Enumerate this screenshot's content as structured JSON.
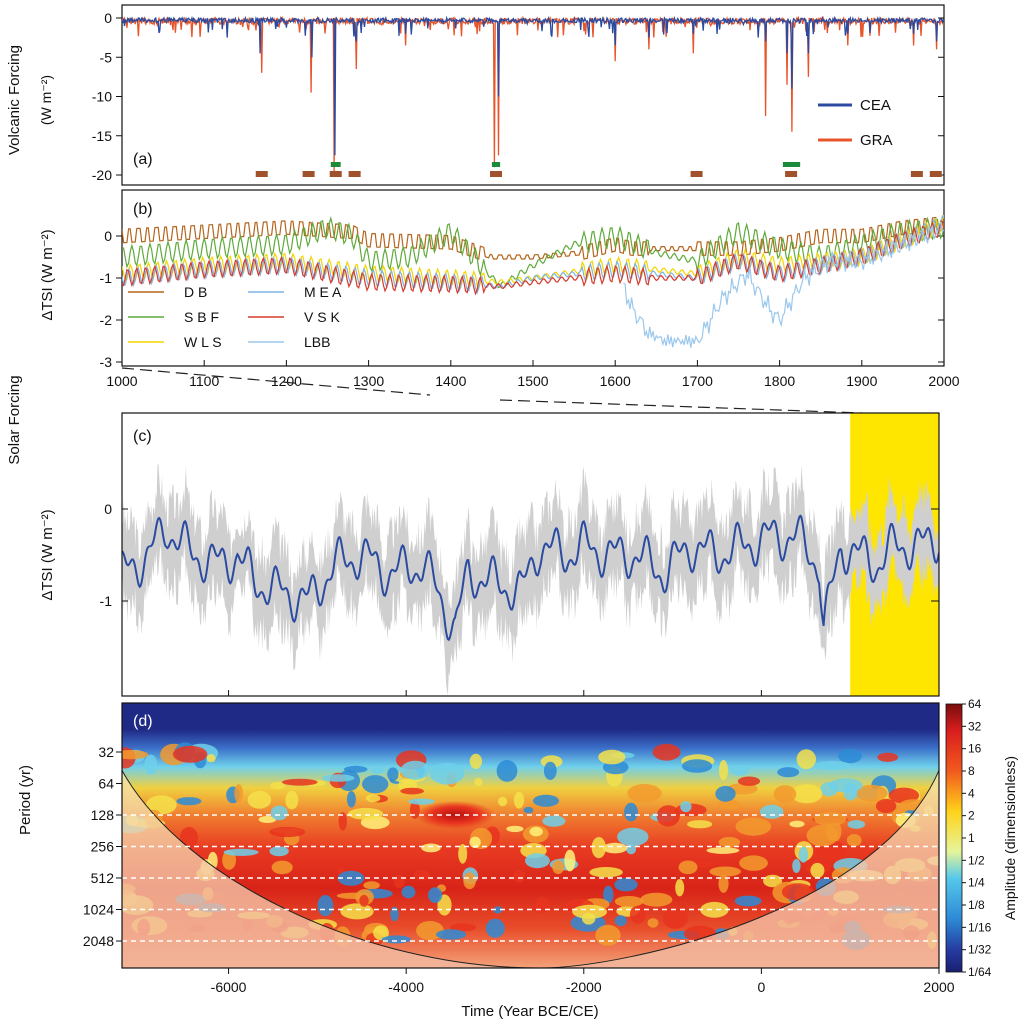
{
  "figure": {
    "group_label_volcanic_1": "Volcanic Forcing",
    "group_label_volcanic_2": "(W m⁻²)",
    "group_label_solar": "Solar Forcing",
    "x_label_bottom": "Time (Year BCE/CE)"
  },
  "colors": {
    "CEA": "#2B4BA0",
    "GRA": "#E8552A",
    "DB": "#B5651D",
    "SBF": "#5FAA3A",
    "WLS": "#F2D500",
    "MEA": "#80B3E3",
    "VSK": "#D63A2A",
    "LBB": "#9CC8EC",
    "tsi_mean": "#2B4BA0",
    "tsi_band": "#CFCFCF",
    "highlight": "#FFE600",
    "marker_brown": "#A0522D",
    "marker_green": "#1B8A3A"
  },
  "chart_data": [
    {
      "id": "a",
      "panel_label": "(a)",
      "type": "line",
      "ylabel": "Volcanic Forcing (W m⁻²)",
      "xlim": [
        1000,
        2000
      ],
      "ylim": [
        -20,
        1
      ],
      "y_ticks": [
        0,
        -5,
        -10,
        -15,
        -20
      ],
      "y_tick_labels": [
        "0",
        "-5",
        "-10",
        "-15",
        "-20"
      ],
      "legend": [
        "CEA",
        "GRA"
      ],
      "legend_position": "right",
      "series": [
        {
          "name": "CEA",
          "baseline": -0.3,
          "spikes": [
            [
              1110,
              -1.5
            ],
            [
              1168,
              -4.5
            ],
            [
              1231,
              -5.0
            ],
            [
              1259,
              -17.5
            ],
            [
              1285,
              -3.0
            ],
            [
              1345,
              -2.0
            ],
            [
              1458,
              -10.0
            ],
            [
              1600,
              -3.5
            ],
            [
              1641,
              -2.5
            ],
            [
              1695,
              -2.0
            ],
            [
              1783,
              -3.0
            ],
            [
              1809,
              -4.5
            ],
            [
              1815,
              -9.0
            ],
            [
              1835,
              -4.5
            ],
            [
              1883,
              -2.0
            ],
            [
              1963,
              -2.0
            ],
            [
              1991,
              -3.0
            ]
          ]
        },
        {
          "name": "GRA",
          "baseline": -0.4,
          "spikes": [
            [
              1170,
              -7.0
            ],
            [
              1230,
              -9.5
            ],
            [
              1258,
              -19.5
            ],
            [
              1285,
              -6.5
            ],
            [
              1345,
              -3.5
            ],
            [
              1453,
              -19.0
            ],
            [
              1458,
              -17.5
            ],
            [
              1600,
              -5.5
            ],
            [
              1641,
              -4.0
            ],
            [
              1695,
              -4.5
            ],
            [
              1783,
              -12.5
            ],
            [
              1809,
              -8.5
            ],
            [
              1815,
              -14.5
            ],
            [
              1835,
              -7.5
            ],
            [
              1883,
              -3.5
            ],
            [
              1963,
              -3.5
            ],
            [
              1991,
              -4.0
            ]
          ]
        }
      ],
      "markers_brown": [
        1170,
        1227,
        1260,
        1283,
        1455,
        1699,
        1814,
        1967,
        1990
      ],
      "markers_green": [
        [
          1254,
          1266
        ],
        [
          1450,
          1460
        ],
        [
          1804,
          1825
        ]
      ]
    },
    {
      "id": "b",
      "panel_label": "(b)",
      "type": "line",
      "ylabel": "ΔTSI (W m⁻²)",
      "xlim": [
        1000,
        2000
      ],
      "ylim": [
        -3,
        1
      ],
      "y_ticks": [
        0,
        -1,
        -2,
        -3
      ],
      "y_tick_labels": [
        "0",
        "-1",
        "-2",
        "-3"
      ],
      "x_ticks": [
        1000,
        1100,
        1200,
        1300,
        1400,
        1500,
        1600,
        1700,
        1800,
        1900,
        2000
      ],
      "x_tick_labels": [
        "1000",
        "1100",
        "1200",
        "1300",
        "1400",
        "1500",
        "1600",
        "1700",
        "1800",
        "1900",
        "2000"
      ],
      "legend_position": "lower-left",
      "series": [
        {
          "name": "D B",
          "key": "DB",
          "x": [
            1000,
            1100,
            1200,
            1280,
            1300,
            1400,
            1450,
            1500,
            1560,
            1600,
            1620,
            1700,
            1750,
            1800,
            1850,
            1900,
            1950,
            2000
          ],
          "y": [
            0,
            0.1,
            0.2,
            0.1,
            -0.1,
            -0.15,
            -0.5,
            -0.5,
            -0.4,
            -0.2,
            -0.3,
            -0.3,
            -0.3,
            -0.2,
            0,
            0,
            0.2,
            0.3
          ],
          "amp": 0.2
        },
        {
          "name": "S B F",
          "key": "SBF",
          "x": [
            1000,
            1100,
            1200,
            1250,
            1280,
            1300,
            1350,
            1400,
            1460,
            1500,
            1550,
            1600,
            1650,
            1700,
            1750,
            1800,
            1850,
            1900,
            1950,
            2000
          ],
          "y": [
            -0.5,
            -0.3,
            -0.2,
            0.2,
            0,
            -0.6,
            -0.5,
            0.1,
            -1.2,
            -0.7,
            -0.2,
            0,
            -0.4,
            -0.6,
            0.1,
            -0.3,
            -0.5,
            -0.2,
            0.1,
            0.2
          ],
          "amp": 0.25
        },
        {
          "name": "W L S",
          "key": "WLS",
          "x": [
            1000,
            1100,
            1200,
            1300,
            1400,
            1460,
            1500,
            1600,
            1650,
            1700,
            1750,
            1800,
            1850,
            1900,
            1950,
            2000
          ],
          "y": [
            -0.9,
            -0.7,
            -0.6,
            -0.9,
            -1.0,
            -1.1,
            -1.0,
            -0.7,
            -0.8,
            -0.9,
            -0.5,
            -0.7,
            -0.6,
            -0.5,
            -0.1,
            0.3
          ],
          "amp": 0.2
        },
        {
          "name": "M E A",
          "key": "MEA",
          "x": [
            1000,
            1100,
            1200,
            1300,
            1400,
            1460,
            1500,
            1600,
            1650,
            1700,
            1750,
            1800,
            1850,
            1900,
            1950,
            2000
          ],
          "y": [
            -1.0,
            -0.8,
            -0.7,
            -1.0,
            -1.1,
            -1.2,
            -1.0,
            -0.8,
            -0.9,
            -1.0,
            -0.6,
            -0.9,
            -0.7,
            -0.5,
            -0.1,
            0.3
          ],
          "amp": 0.2
        },
        {
          "name": "V S K",
          "key": "VSK",
          "x": [
            1000,
            1100,
            1200,
            1300,
            1400,
            1460,
            1500,
            1600,
            1650,
            1700,
            1750,
            1800,
            1850,
            1900,
            1950,
            2000
          ],
          "y": [
            -1.0,
            -0.8,
            -0.7,
            -1.1,
            -1.15,
            -1.2,
            -1.1,
            -0.9,
            -1.0,
            -1.0,
            -0.6,
            -0.9,
            -0.7,
            -0.5,
            -0.1,
            0.2
          ],
          "amp": 0.2
        },
        {
          "name": "LBB",
          "key": "LBB",
          "x": [
            1610,
            1620,
            1640,
            1660,
            1700,
            1710,
            1730,
            1760,
            1790,
            1800,
            1830,
            1860,
            1900,
            1950,
            2000
          ],
          "y": [
            -1.2,
            -1.7,
            -2.3,
            -2.5,
            -2.5,
            -2.2,
            -1.5,
            -0.9,
            -1.8,
            -2.0,
            -1.0,
            -0.6,
            -0.6,
            -0.2,
            0.2
          ],
          "amp": 0.15
        }
      ]
    },
    {
      "id": "c",
      "panel_label": "(c)",
      "type": "area",
      "ylabel": "ΔTSI (W m⁻²)",
      "xlim": [
        -7200,
        2000
      ],
      "ylim": [
        -2,
        1
      ],
      "y_ticks": [
        0,
        -1
      ],
      "y_tick_labels": [
        "0",
        "-1"
      ],
      "highlight_range": [
        1000,
        2000
      ],
      "series": [
        {
          "name": "mean",
          "x": [
            -7200,
            -6900,
            -6700,
            -6400,
            -6100,
            -5900,
            -5700,
            -5400,
            -5100,
            -4800,
            -4500,
            -4200,
            -3800,
            -3450,
            -3300,
            -3000,
            -2700,
            -2500,
            -2200,
            -2000,
            -1700,
            -1400,
            -1100,
            -800,
            -500,
            -200,
            100,
            400,
            650,
            700,
            900,
            1100,
            1300,
            1500,
            1800,
            2000
          ],
          "y": [
            -0.7,
            -0.5,
            -0.2,
            -0.5,
            -0.6,
            -0.5,
            -0.8,
            -0.9,
            -1.0,
            -0.6,
            -0.5,
            -0.7,
            -0.6,
            -1.3,
            -0.7,
            -0.8,
            -0.9,
            -0.4,
            -0.5,
            -0.4,
            -0.5,
            -0.5,
            -0.7,
            -0.4,
            -0.5,
            -0.4,
            -0.3,
            -0.3,
            -0.6,
            -1.3,
            -0.4,
            -0.5,
            -0.6,
            -0.4,
            -0.4,
            -0.3
          ]
        }
      ],
      "band_halfwidth": 0.35
    },
    {
      "id": "d",
      "panel_label": "(d)",
      "type": "heatmap",
      "ylabel": "Period (yr)",
      "xlabel": "Time (Year BCE/CE)",
      "xlim": [
        -7200,
        2000
      ],
      "x_ticks": [
        -6000,
        -4000,
        -2000,
        0,
        2000
      ],
      "x_tick_labels": [
        "-6000",
        "-4000",
        "-2000",
        "0",
        "2000"
      ],
      "y_ticks": [
        32,
        64,
        128,
        256,
        512,
        1024,
        2048
      ],
      "y_tick_labels": [
        "32",
        "64",
        "128",
        "256",
        "512",
        "1024",
        "2048"
      ],
      "period_range": [
        16,
        4096
      ],
      "colorbar_label": "Amplitude (dimensionless)",
      "colorbar_ticks": [
        "64",
        "32",
        "16",
        "8",
        "4",
        "2",
        "1",
        "1/2",
        "1/4",
        "1/8",
        "1/16",
        "1/32",
        "1/64"
      ],
      "dashed_periods": [
        128,
        256,
        512,
        1024,
        2048
      ]
    }
  ]
}
